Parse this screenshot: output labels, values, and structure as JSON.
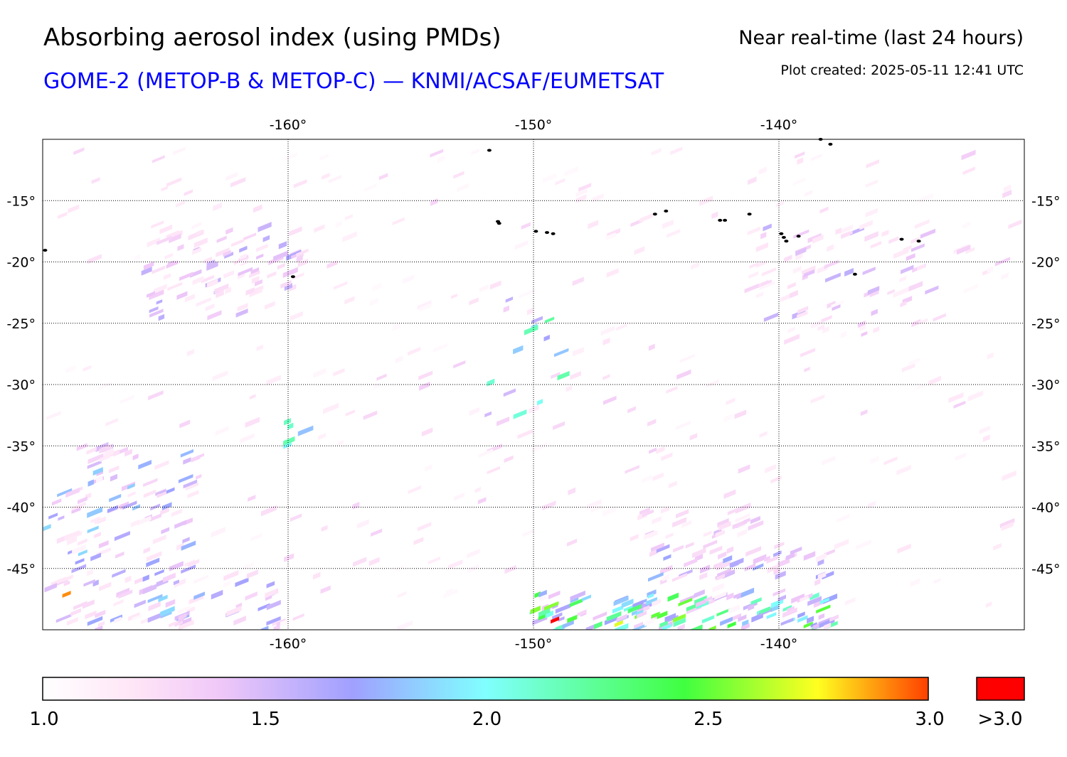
{
  "header": {
    "title": "Absorbing aerosol index (using PMDs)",
    "subtitle": "GOME-2 (METOP-B & METOP-C) — KNMI/ACSAF/EUMETSAT",
    "period": "Near real-time (last 24 hours)",
    "created": "Plot created: 2025-05-11 12:41 UTC"
  },
  "map": {
    "lon_range": [
      -170,
      -130
    ],
    "lat_range": [
      -50,
      -10
    ],
    "lon_ticks": [
      {
        "value": -160,
        "label": "-160°"
      },
      {
        "value": -150,
        "label": "-150°"
      },
      {
        "value": -140,
        "label": "-140°"
      }
    ],
    "lat_ticks": [
      {
        "value": -15,
        "label": "-15°"
      },
      {
        "value": -20,
        "label": "-20°"
      },
      {
        "value": -25,
        "label": "-25°"
      },
      {
        "value": -30,
        "label": "-30°"
      },
      {
        "value": -35,
        "label": "-35°"
      },
      {
        "value": -40,
        "label": "-40°"
      },
      {
        "value": -45,
        "label": "-45°"
      }
    ],
    "grid": "dotted",
    "islands": [
      {
        "lon": -169.9,
        "lat": -19.05
      },
      {
        "lon": -159.8,
        "lat": -21.2
      },
      {
        "lon": -151.8,
        "lat": -10.9
      },
      {
        "lon": -151.45,
        "lat": -16.7
      },
      {
        "lon": -151.4,
        "lat": -16.85
      },
      {
        "lon": -149.9,
        "lat": -17.5
      },
      {
        "lon": -149.45,
        "lat": -17.6
      },
      {
        "lon": -149.2,
        "lat": -17.7
      },
      {
        "lon": -145.05,
        "lat": -16.1
      },
      {
        "lon": -144.6,
        "lat": -15.85
      },
      {
        "lon": -142.4,
        "lat": -16.6
      },
      {
        "lon": -142.2,
        "lat": -16.6
      },
      {
        "lon": -141.2,
        "lat": -16.1
      },
      {
        "lon": -139.9,
        "lat": -17.7
      },
      {
        "lon": -139.8,
        "lat": -18.0
      },
      {
        "lon": -139.7,
        "lat": -18.3
      },
      {
        "lon": -139.2,
        "lat": -17.9
      },
      {
        "lon": -138.3,
        "lat": -10.0
      },
      {
        "lon": -137.9,
        "lat": -10.4
      },
      {
        "lon": -136.9,
        "lat": -21.0
      },
      {
        "lon": -135.0,
        "lat": -18.15
      },
      {
        "lon": -134.3,
        "lat": -18.3
      }
    ],
    "aerosol_regions": [
      {
        "lon": [
          -166,
          -159.5
        ],
        "lat": [
          -17,
          -24.5
        ],
        "count": 90,
        "level": [
          1.15,
          1.65
        ]
      },
      {
        "lon": [
          -170,
          -164
        ],
        "lat": [
          -35,
          -50
        ],
        "count": 130,
        "level": [
          1.15,
          1.9
        ]
      },
      {
        "lon": [
          -166,
          -160
        ],
        "lat": [
          -46,
          -50
        ],
        "count": 25,
        "level": [
          1.2,
          1.8
        ]
      },
      {
        "lon": [
          -150.2,
          -138
        ],
        "lat": [
          -47,
          -50
        ],
        "count": 130,
        "level": [
          1.3,
          2.6
        ]
      },
      {
        "lon": [
          -145.5,
          -138
        ],
        "lat": [
          -43,
          -46
        ],
        "count": 45,
        "level": [
          1.25,
          1.8
        ]
      },
      {
        "lon": [
          -146,
          -141
        ],
        "lat": [
          -40,
          -42.5
        ],
        "count": 25,
        "level": [
          1.1,
          1.5
        ]
      },
      {
        "lon": [
          -141.5,
          -134
        ],
        "lat": [
          -17,
          -26
        ],
        "count": 70,
        "level": [
          1.1,
          1.6
        ]
      },
      {
        "lon": [
          -170,
          -130
        ],
        "lat": [
          -11,
          -50
        ],
        "count": 320,
        "level": [
          1.05,
          1.35
        ]
      },
      {
        "lon": [
          -152,
          -149
        ],
        "lat": [
          -23,
          -33
        ],
        "count": 14,
        "level": [
          1.5,
          2.3
        ]
      },
      {
        "lon": [
          -160.6,
          -159.5
        ],
        "lat": [
          -32,
          -35
        ],
        "count": 5,
        "level": [
          1.8,
          2.2
        ]
      }
    ],
    "hotspots": [
      {
        "lon": -169.2,
        "lat": -47.1,
        "level": 2.9
      },
      {
        "lon": -149.3,
        "lat": -49.2,
        "level": 3.1
      },
      {
        "lon": -145.2,
        "lat": -48.8,
        "level": 2.5
      },
      {
        "lon": -146.7,
        "lat": -49.5,
        "level": 2.7
      },
      {
        "lon": -142.1,
        "lat": -49.6,
        "level": 2.45
      }
    ]
  },
  "colorbar": {
    "min": 1.0,
    "max": 3.0,
    "ticks": [
      {
        "value": 1.0,
        "label": "1.0"
      },
      {
        "value": 1.5,
        "label": "1.5"
      },
      {
        "value": 2.0,
        "label": "2.0"
      },
      {
        "value": 2.5,
        "label": "2.5"
      },
      {
        "value": 3.0,
        "label": "3.0"
      }
    ],
    "stops": [
      {
        "value": 1.0,
        "color": "#ffffff"
      },
      {
        "value": 1.2,
        "color": "#ffe6f7"
      },
      {
        "value": 1.4,
        "color": "#f0c8f8"
      },
      {
        "value": 1.7,
        "color": "#a0a0ff"
      },
      {
        "value": 2.0,
        "color": "#80ffff"
      },
      {
        "value": 2.45,
        "color": "#40ff40"
      },
      {
        "value": 2.75,
        "color": "#ffff20"
      },
      {
        "value": 3.0,
        "color": "#ff4000"
      }
    ],
    "over_label": ">3.0",
    "over_color": "#ff0000"
  }
}
